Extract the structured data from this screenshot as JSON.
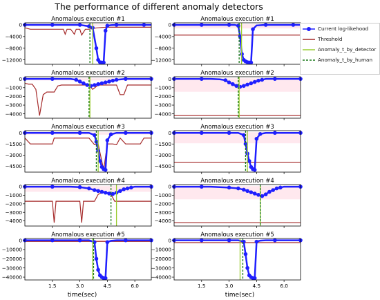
{
  "title": "The performance of different anomaly detectors",
  "xlabel": "time(sec)",
  "colors": {
    "loglik": "#1f1fff",
    "threshold": "#a52a2a",
    "detector": "#9acd32",
    "human": "#1a7a1a",
    "band": "#ffd6e0"
  },
  "legend": [
    {
      "label": "Current log-likehood",
      "key": "loglik",
      "style": "line-marker"
    },
    {
      "label": "Threshold",
      "key": "threshold",
      "style": "line"
    },
    {
      "label": "Anomaly_t_by_detector",
      "key": "detector",
      "style": "line"
    },
    {
      "label": "Anomaly_t_by_human",
      "key": "human",
      "style": "dashed"
    }
  ],
  "chart_data": [
    {
      "type": "line",
      "title": "Anomalous execution #1",
      "xlim": [
        0,
        6.9
      ],
      "ylim": [
        -13500,
        700
      ],
      "yticks": [
        0,
        -4000,
        -8000,
        -12000
      ],
      "ytick_labels": [
        "0",
        "−4000",
        "−8000",
        "−12000"
      ],
      "xticks": [
        1.5,
        3.0,
        4.5,
        6.0
      ],
      "xtick_labels": [
        "",
        "",
        "",
        ""
      ],
      "detector_t": 3.7,
      "human_t": 3.55,
      "series": [
        {
          "x": [
            0,
            0.5,
            1,
            1.5,
            2,
            2.5,
            3,
            3.2,
            3.5,
            3.7,
            3.9,
            4.0,
            4.1,
            4.2,
            4.3,
            4.4,
            4.5,
            4.7,
            5.0,
            5.5,
            6.0,
            6.5,
            6.9
          ],
          "y": [
            0,
            0,
            0,
            0,
            0,
            0,
            0,
            -200,
            -500,
            -1000,
            -8000,
            -12000,
            -12800,
            -12900,
            -12900,
            -2000,
            -300,
            -100,
            0,
            0,
            0,
            0,
            0
          ]
        },
        {
          "x": [
            0,
            0.3,
            0.6,
            0.9,
            1.2,
            1.5,
            1.8,
            2.1,
            2.2,
            2.3,
            2.5,
            2.7,
            2.8,
            3.0,
            3.1,
            3.3,
            3.5,
            3.7,
            4.0,
            4.2,
            4.5,
            5.0,
            5.5,
            6.0,
            6.5,
            6.9
          ],
          "y": [
            -1000,
            -1500,
            -1500,
            -1500,
            -1500,
            -1500,
            -1500,
            -1500,
            -3200,
            -1500,
            -1500,
            -3200,
            -1500,
            -1500,
            -3500,
            -1500,
            -1500,
            -1200,
            -1000,
            -900,
            -800,
            -800,
            -800,
            -800,
            -800,
            -800
          ]
        }
      ]
    },
    {
      "type": "line",
      "title": "Anomalous execution #1",
      "xlim": [
        0,
        6.9
      ],
      "ylim": [
        -13500,
        700
      ],
      "yticks": [
        0,
        -4000,
        -8000,
        -12000
      ],
      "ytick_labels": [
        "0",
        "−4000",
        "−8000",
        "−12000"
      ],
      "xticks": [
        1.5,
        3.0,
        4.5,
        6.0
      ],
      "xtick_labels": [
        "",
        "",
        "",
        ""
      ],
      "detector_t": 3.68,
      "human_t": 3.55,
      "series": [
        {
          "x": [
            0,
            0.5,
            1,
            1.5,
            2,
            2.5,
            3,
            3.3,
            3.5,
            3.6,
            3.7,
            3.8,
            3.9,
            4.0,
            4.1,
            4.2,
            4.3,
            4.5,
            5.0,
            5.5,
            6.0,
            6.5,
            6.9
          ],
          "y": [
            0,
            0,
            0,
            0,
            0,
            0,
            0,
            0,
            -300,
            -4000,
            -10000,
            -12000,
            -12500,
            -12800,
            -12900,
            -12900,
            -1500,
            -200,
            0,
            0,
            0,
            0,
            0
          ]
        },
        {
          "x": [
            0,
            6.9
          ],
          "y": [
            -3500,
            -3500
          ]
        }
      ]
    },
    {
      "type": "line",
      "title": "Anomalous execution #2",
      "xlim": [
        0,
        6.9
      ],
      "ylim": [
        -4500,
        250
      ],
      "yticks": [
        0,
        -1000,
        -2000,
        -3000,
        -4000
      ],
      "ytick_labels": [
        "0",
        "−1000",
        "−2000",
        "−3000",
        "−4000"
      ],
      "xticks": [
        1.5,
        3.0,
        4.5,
        6.0
      ],
      "xtick_labels": [
        "",
        "",
        "",
        ""
      ],
      "detector_t": 3.55,
      "human_t": 3.5,
      "series": [
        {
          "x": [
            0,
            0.5,
            1,
            1.5,
            2,
            2.5,
            2.8,
            3.0,
            3.2,
            3.4,
            3.6,
            3.8,
            4.0,
            4.2,
            4.4,
            4.6,
            4.8,
            5.0,
            5.5,
            6.0,
            6.5,
            6.9
          ],
          "y": [
            0,
            0,
            0,
            0,
            0,
            0,
            -100,
            -300,
            -500,
            -700,
            -800,
            -700,
            -600,
            -500,
            -400,
            -300,
            -200,
            -100,
            0,
            0,
            0,
            0
          ]
        },
        {
          "x": [
            0,
            0.2,
            0.4,
            0.6,
            0.8,
            1.0,
            1.2,
            1.4,
            1.6,
            1.8,
            2.0,
            2.5,
            3.0,
            3.5,
            3.7,
            4.0,
            4.5,
            5.0,
            5.2,
            5.4,
            5.6,
            5.8,
            6.0,
            6.9
          ],
          "y": [
            -500,
            -600,
            -600,
            -1200,
            -4200,
            -1800,
            -1500,
            -1500,
            -1500,
            -800,
            -700,
            -700,
            -700,
            -700,
            -1200,
            -700,
            -700,
            -700,
            -1800,
            -1800,
            -700,
            -700,
            -700,
            -700
          ]
        }
      ]
    },
    {
      "type": "line",
      "title": "Anomalous execution #2",
      "xlim": [
        0,
        6.9
      ],
      "ylim": [
        -4500,
        250
      ],
      "yticks": [
        0,
        -1000,
        -2000,
        -3000,
        -4000
      ],
      "ytick_labels": [
        "0",
        "−1000",
        "−2000",
        "−3000",
        "−4000"
      ],
      "xticks": [
        1.5,
        3.0,
        4.5,
        6.0
      ],
      "xtick_labels": [
        "",
        "",
        "",
        ""
      ],
      "detector_t": 3.55,
      "human_t": 3.5,
      "series": [
        {
          "x": [
            0,
            0.5,
            1,
            1.5,
            2,
            2.5,
            2.8,
            3.0,
            3.2,
            3.4,
            3.6,
            3.8,
            4.0,
            4.2,
            4.4,
            4.6,
            4.8,
            5.0,
            5.5,
            6.0,
            6.5,
            6.9
          ],
          "y": [
            0,
            0,
            0,
            0,
            0,
            -50,
            -150,
            -400,
            -600,
            -800,
            -900,
            -800,
            -650,
            -500,
            -350,
            -200,
            -100,
            0,
            0,
            0,
            0,
            0
          ]
        },
        {
          "x": [
            0,
            6.9
          ],
          "y": [
            -4200,
            -4200
          ]
        }
      ]
    },
    {
      "type": "line",
      "title": "Anomalous execution #3",
      "xlim": [
        0,
        6.9
      ],
      "ylim": [
        -5300,
        300
      ],
      "yticks": [
        0,
        -1500,
        -3000,
        -4500
      ],
      "ytick_labels": [
        "0",
        "−1500",
        "−3000",
        "−4500"
      ],
      "xticks": [
        1.5,
        3.0,
        4.5,
        6.0
      ],
      "xtick_labels": [
        "",
        "",
        "",
        ""
      ],
      "detector_t": 4.0,
      "human_t": 3.9,
      "series": [
        {
          "x": [
            0,
            0.5,
            1,
            1.5,
            2,
            2.5,
            3,
            3.5,
            3.8,
            3.9,
            4.0,
            4.1,
            4.2,
            4.3,
            4.4,
            4.5,
            4.7,
            5.0,
            5.5,
            6.0,
            6.5,
            6.9
          ],
          "y": [
            0,
            0,
            0,
            0,
            0,
            0,
            0,
            0,
            -300,
            -1200,
            -2400,
            -3800,
            -4600,
            -4900,
            -5000,
            -1000,
            -200,
            0,
            0,
            0,
            0,
            0
          ]
        },
        {
          "x": [
            0,
            0.3,
            0.5,
            0.7,
            1.0,
            1.5,
            1.6,
            1.8,
            2.0,
            2.5,
            3.0,
            3.5,
            3.8,
            4.0,
            4.3,
            4.5,
            4.8,
            5.0,
            5.2,
            5.5,
            6.0,
            6.3,
            6.5,
            6.9
          ],
          "y": [
            -700,
            -1500,
            -1500,
            -1500,
            -1500,
            -1500,
            -700,
            -700,
            -700,
            -700,
            -700,
            -700,
            -1600,
            -1500,
            -5000,
            -1500,
            -1500,
            -1600,
            -700,
            -1500,
            -1500,
            -1500,
            -700,
            -700
          ]
        }
      ]
    },
    {
      "type": "line",
      "title": "Anomalous execution #3",
      "xlim": [
        0,
        6.9
      ],
      "ylim": [
        -5300,
        300
      ],
      "yticks": [
        0,
        -1500,
        -3000,
        -4500
      ],
      "ytick_labels": [
        "0",
        "−1500",
        "−3000",
        "−4500"
      ],
      "xticks": [
        1.5,
        3.0,
        4.5,
        6.0
      ],
      "xtick_labels": [
        "",
        "",
        "",
        ""
      ],
      "detector_t": 4.0,
      "human_t": 3.9,
      "series": [
        {
          "x": [
            0,
            0.5,
            1,
            1.5,
            2,
            2.5,
            3,
            3.5,
            3.8,
            3.9,
            4.0,
            4.1,
            4.2,
            4.3,
            4.4,
            4.5,
            4.7,
            5.0,
            5.5,
            6.0,
            6.5,
            6.9
          ],
          "y": [
            0,
            0,
            0,
            0,
            0,
            0,
            0,
            0,
            -300,
            -1500,
            -2800,
            -3800,
            -4600,
            -4900,
            -5000,
            -800,
            -150,
            0,
            0,
            0,
            0,
            0
          ]
        },
        {
          "x": [
            0,
            6.9
          ],
          "y": [
            -4000,
            -4000
          ]
        }
      ]
    },
    {
      "type": "line",
      "title": "Anomalous execution #4",
      "xlim": [
        0,
        6.9
      ],
      "ylim": [
        -4600,
        250
      ],
      "yticks": [
        0,
        -1000,
        -2000,
        -3000,
        -4000
      ],
      "ytick_labels": [
        "0",
        "−1000",
        "−2000",
        "−3000",
        "−4000"
      ],
      "xticks": [
        1.5,
        3.0,
        4.5,
        6.0
      ],
      "xtick_labels": [
        "",
        "",
        "",
        ""
      ],
      "detector_t": 5.0,
      "human_t": 4.7,
      "series": [
        {
          "x": [
            0,
            0.5,
            1,
            1.5,
            2,
            2.5,
            3,
            3.5,
            3.8,
            4.0,
            4.2,
            4.4,
            4.6,
            4.8,
            5.0,
            5.2,
            5.4,
            5.6,
            5.8,
            6.0,
            6.5,
            6.9
          ],
          "y": [
            0,
            0,
            0,
            0,
            0,
            0,
            -50,
            -200,
            -400,
            -500,
            -600,
            -700,
            -800,
            -850,
            -700,
            -500,
            -300,
            -200,
            -100,
            0,
            0,
            0
          ]
        },
        {
          "x": [
            0,
            1.0,
            1.5,
            1.6,
            1.7,
            2.0,
            2.5,
            3.0,
            3.1,
            3.2,
            3.5,
            3.8,
            4.0,
            4.2,
            4.5,
            4.7,
            4.9,
            5.2,
            5.5,
            6.0,
            6.5,
            6.9
          ],
          "y": [
            -1700,
            -1700,
            -1700,
            -4200,
            -1700,
            -1700,
            -1700,
            -1700,
            -4200,
            -1700,
            -1700,
            -1700,
            -900,
            -700,
            -700,
            -900,
            -1700,
            -1700,
            -1700,
            -1700,
            -1700,
            -1700
          ]
        }
      ]
    },
    {
      "type": "line",
      "title": "Anomalous execution #4",
      "xlim": [
        0,
        6.9
      ],
      "ylim": [
        -4600,
        250
      ],
      "yticks": [
        0,
        -1000,
        -2000,
        -3000,
        -4000
      ],
      "ytick_labels": [
        "0",
        "−1000",
        "−2000",
        "−3000",
        "−4000"
      ],
      "xticks": [
        1.5,
        3.0,
        4.5,
        6.0
      ],
      "xtick_labels": [
        "",
        "",
        "",
        ""
      ],
      "detector_t": 4.7,
      "human_t": 4.7,
      "series": [
        {
          "x": [
            0,
            0.5,
            1,
            1.5,
            2,
            2.5,
            3,
            3.5,
            3.8,
            4.0,
            4.2,
            4.4,
            4.6,
            4.8,
            5.0,
            5.2,
            5.4,
            5.6,
            5.8,
            6.0,
            6.5,
            6.9
          ],
          "y": [
            0,
            0,
            0,
            0,
            0,
            -50,
            -100,
            -200,
            -350,
            -500,
            -650,
            -800,
            -950,
            -1100,
            -900,
            -600,
            -400,
            -200,
            -100,
            0,
            0,
            0
          ]
        },
        {
          "x": [
            0,
            6.9
          ],
          "y": [
            -4200,
            -4200
          ]
        }
      ]
    },
    {
      "type": "line",
      "title": "Anomalous execution #5",
      "xlim": [
        0,
        6.9
      ],
      "ylim": [
        -43000,
        2000
      ],
      "yticks": [
        0,
        -10000,
        -20000,
        -30000,
        -40000
      ],
      "ytick_labels": [
        "0",
        "−10000",
        "−20000",
        "−30000",
        "−40000"
      ],
      "xticks": [
        1.5,
        3.0,
        4.5,
        6.0
      ],
      "xtick_labels": [
        "1.5",
        "3.0",
        "4.5",
        "6.0"
      ],
      "detector_t": 3.7,
      "human_t": 3.75,
      "series": [
        {
          "x": [
            0,
            0.5,
            1,
            1.5,
            2,
            2.5,
            3,
            3.5,
            3.8,
            3.9,
            4.0,
            4.1,
            4.2,
            4.3,
            4.4,
            4.5,
            4.7,
            5.0,
            5.5,
            6.0,
            6.5,
            6.9
          ],
          "y": [
            0,
            0,
            0,
            0,
            0,
            0,
            0,
            0,
            -2000,
            -20000,
            -32000,
            -38000,
            -40000,
            -41000,
            -41000,
            -2000,
            -500,
            0,
            0,
            0,
            0,
            0
          ]
        },
        {
          "x": [
            0,
            6.9
          ],
          "y": [
            -1200,
            -1200
          ]
        }
      ]
    },
    {
      "type": "line",
      "title": "Anomalous execution #5",
      "xlim": [
        0,
        6.9
      ],
      "ylim": [
        -43000,
        2000
      ],
      "yticks": [
        0,
        -10000,
        -20000,
        -30000,
        -40000
      ],
      "ytick_labels": [
        "0",
        "−10000",
        "−20000",
        "−30000",
        "−40000"
      ],
      "xticks": [
        1.5,
        3.0,
        4.5,
        6.0
      ],
      "xtick_labels": [
        "1.5",
        "3.0",
        "4.5",
        "6.0"
      ],
      "detector_t": 3.6,
      "human_t": 3.75,
      "series": [
        {
          "x": [
            0,
            0.5,
            1,
            1.5,
            2,
            2.5,
            3,
            3.5,
            3.8,
            3.9,
            4.0,
            4.1,
            4.2,
            4.3,
            4.4,
            4.5,
            4.7,
            5.0,
            5.5,
            6.0,
            6.5,
            6.9
          ],
          "y": [
            0,
            0,
            0,
            0,
            0,
            0,
            0,
            0,
            -1500,
            -15000,
            -30000,
            -38000,
            -40000,
            -41000,
            -41000,
            -1500,
            -300,
            0,
            0,
            0,
            0,
            0
          ]
        },
        {
          "x": [
            0,
            6.9
          ],
          "y": [
            -2500,
            -2500
          ]
        }
      ]
    }
  ]
}
